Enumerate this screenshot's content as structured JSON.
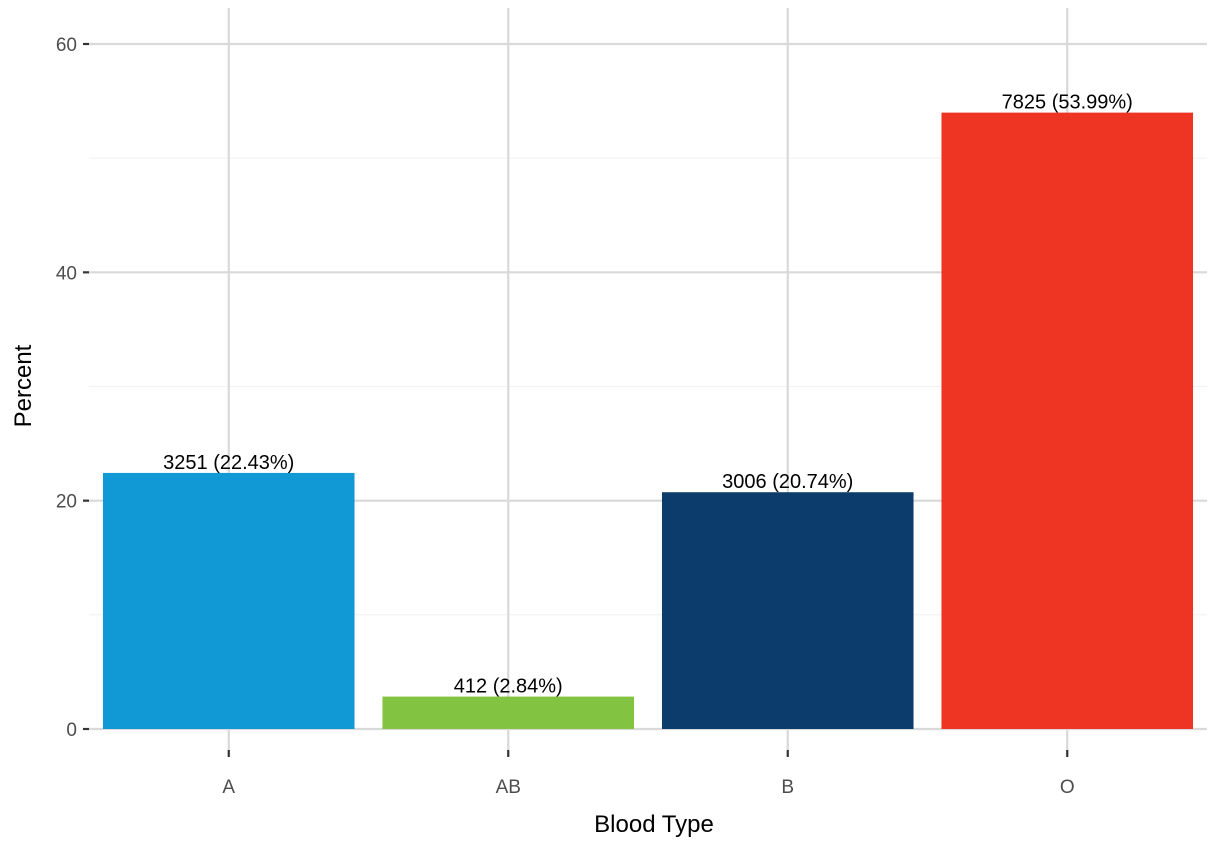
{
  "chart_data": {
    "type": "bar",
    "title": "",
    "xlabel": "Blood Type",
    "ylabel": "Percent",
    "categories": [
      "A",
      "AB",
      "B",
      "O"
    ],
    "values": [
      22.43,
      2.84,
      20.74,
      53.99
    ],
    "counts": [
      3251,
      412,
      3006,
      7825
    ],
    "data_labels": [
      "3251 (22.43%)",
      "412 (2.84%)",
      "3006 (20.74%)",
      "7825 (53.99%)"
    ],
    "colors": [
      "#1199d6",
      "#82c341",
      "#0c3c6b",
      "#ee3524"
    ],
    "ylim": [
      0,
      62
    ],
    "yticks": [
      0,
      20,
      40,
      60
    ],
    "ytick_labels": [
      "0",
      "20",
      "40",
      "60"
    ],
    "grid": true,
    "legend": "none"
  }
}
